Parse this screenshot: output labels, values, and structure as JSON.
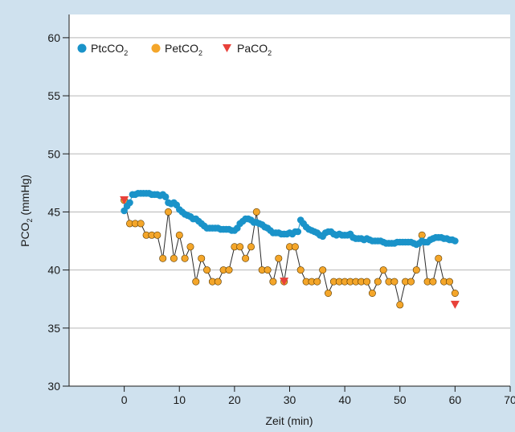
{
  "chart_data": {
    "type": "scatter",
    "xlabel": "Zeit (min)",
    "ylabel_main": "PCO",
    "ylabel_sub": "2",
    "ylabel_unit": " (mmHg)",
    "xlim": [
      -10,
      70
    ],
    "ylim": [
      30,
      62
    ],
    "x_ticks": [
      0,
      10,
      20,
      30,
      40,
      50,
      60,
      70
    ],
    "y_ticks": [
      30,
      35,
      40,
      45,
      50,
      55,
      60
    ],
    "grid": "horizontal",
    "legend_position": "top-left",
    "series": [
      {
        "name_main": "PtcCO",
        "name_sub": "2",
        "marker": "circle",
        "color": "#1a93c9",
        "connected": true,
        "x": [
          0,
          0.5,
          1,
          1.5,
          2,
          2.5,
          3,
          3.5,
          4,
          4.5,
          5,
          5.5,
          6,
          6.5,
          7,
          7.5,
          8,
          8.5,
          9,
          9.5,
          10,
          10.5,
          11,
          11.5,
          12,
          12.5,
          13,
          13.5,
          14,
          14.5,
          15,
          15.5,
          16,
          16.5,
          17,
          17.5,
          18,
          18.5,
          19,
          19.5,
          20,
          20.5,
          21,
          21.5,
          22,
          22.5,
          23,
          23.5,
          24,
          24.5,
          25,
          25.5,
          26,
          26.5,
          27,
          27.5,
          28,
          28.5,
          29,
          29.5,
          30,
          30.5,
          31,
          31.5,
          32,
          32.5,
          33,
          33.5,
          34,
          34.5,
          35,
          35.5,
          36,
          36.5,
          37,
          37.5,
          38,
          38.5,
          39,
          39.5,
          40,
          40.5,
          41,
          41.5,
          42,
          42.5,
          43,
          43.5,
          44,
          44.5,
          45,
          45.5,
          46,
          46.5,
          47,
          47.5,
          48,
          48.5,
          49,
          49.5,
          50,
          50.5,
          51,
          51.5,
          52,
          52.5,
          53,
          53.5,
          54,
          54.5,
          55,
          55.5,
          56,
          56.5,
          57,
          57.5,
          58,
          58.5,
          59,
          59.5,
          60
        ],
        "y": [
          45.1,
          45.5,
          45.8,
          46.5,
          46.5,
          46.6,
          46.6,
          46.6,
          46.6,
          46.6,
          46.5,
          46.5,
          46.5,
          46.4,
          46.5,
          46.3,
          45.8,
          45.7,
          45.8,
          45.6,
          45.2,
          45.0,
          44.8,
          44.7,
          44.6,
          44.4,
          44.4,
          44.2,
          44.0,
          43.8,
          43.6,
          43.6,
          43.6,
          43.6,
          43.6,
          43.5,
          43.5,
          43.5,
          43.5,
          43.4,
          43.4,
          43.6,
          44.0,
          44.2,
          44.4,
          44.4,
          44.3,
          44.1,
          44.1,
          44.0,
          43.9,
          43.7,
          43.6,
          43.4,
          43.2,
          43.2,
          43.2,
          43.1,
          43.1,
          43.1,
          43.2,
          43.1,
          43.3,
          43.3,
          44.3,
          44.0,
          43.7,
          43.5,
          43.4,
          43.3,
          43.2,
          43.0,
          42.9,
          43.2,
          43.3,
          43.3,
          43.1,
          43.0,
          43.1,
          43.0,
          43.0,
          43.0,
          43.1,
          42.8,
          42.7,
          42.7,
          42.7,
          42.6,
          42.7,
          42.6,
          42.5,
          42.5,
          42.5,
          42.5,
          42.4,
          42.3,
          42.3,
          42.3,
          42.3,
          42.4,
          42.4,
          42.4,
          42.4,
          42.4,
          42.4,
          42.3,
          42.2,
          42.3,
          42.5,
          42.4,
          42.4,
          42.6,
          42.7,
          42.8,
          42.8,
          42.8,
          42.7,
          42.7,
          42.6,
          42.6,
          42.5
        ]
      },
      {
        "name_main": "PetCO",
        "name_sub": "2",
        "marker": "circle",
        "color": "#f4a62a",
        "connected": true,
        "x": [
          0,
          1,
          2,
          3,
          4,
          5,
          6,
          7,
          8,
          9,
          10,
          11,
          12,
          13,
          14,
          15,
          16,
          17,
          18,
          19,
          20,
          21,
          22,
          23,
          24,
          25,
          26,
          27,
          28,
          29,
          30,
          31,
          32,
          33,
          34,
          35,
          36,
          37,
          38,
          39,
          40,
          41,
          42,
          43,
          44,
          45,
          46,
          47,
          48,
          49,
          50,
          51,
          52,
          53,
          54,
          55,
          56,
          57,
          58,
          59,
          60
        ],
        "y": [
          46,
          44,
          44,
          44,
          43,
          43,
          43,
          41,
          45,
          41,
          43,
          41,
          42,
          39,
          41,
          40,
          39,
          39,
          40,
          40,
          42,
          42,
          41,
          42,
          45,
          40,
          40,
          39,
          41,
          39,
          42,
          42,
          40,
          39,
          39,
          39,
          40,
          38,
          39,
          39,
          39,
          39,
          39,
          39,
          39,
          38,
          39,
          40,
          39,
          39,
          37,
          39,
          39,
          40,
          43,
          39,
          39,
          41,
          39,
          39,
          38
        ]
      },
      {
        "name_main": "PaCO",
        "name_sub": "2",
        "marker": "triangle-down",
        "color": "#e8413a",
        "connected": false,
        "x": [
          0,
          29,
          60
        ],
        "y": [
          46,
          39,
          37
        ]
      }
    ]
  }
}
